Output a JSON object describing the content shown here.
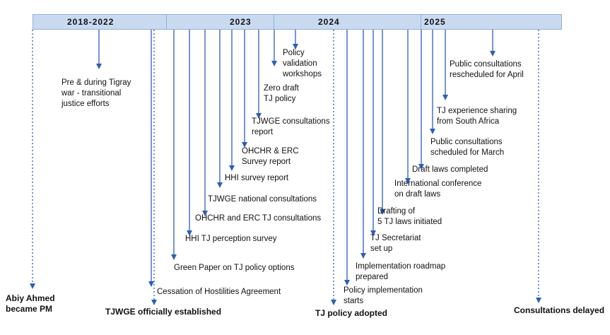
{
  "periods": [
    "2018-2022",
    "2023",
    "2024",
    "2025"
  ],
  "events": {
    "abiy": "Abiy Ahmed\nbecame PM",
    "pre_war": "Pre & during Tigray\nwar  - transitional\njustice efforts",
    "tjwge_established": "TJWGE officially established",
    "cessation": "Cessation of Hostilities Agreement",
    "green_paper": "Green Paper on TJ policy options",
    "hhi_perception": "HHI  TJ perception survey",
    "ohchr_erc_consult": "OHCHR and ERC TJ consultations",
    "tjwge_national": "TJWGE national consultations",
    "hhi_survey": "HHI survey report",
    "ohchr_erc_survey": "OHCHR & ERC\nSurvey report",
    "tjwge_consult_report": "TJWGE consultations\nreport",
    "zero_draft": "Zero draft\nTJ policy",
    "validation": "Policy\nvalidation\nworkshops",
    "policy_adopted": "TJ policy adopted",
    "implementation_starts": "Policy implementation\nstarts",
    "roadmap": "Implementation roadmap\nprepared",
    "secretariat": "TJ Secretariat\nset up",
    "drafting": "Drafting of\n5 TJ laws initiated",
    "intl_conf": "International conference\non draft laws",
    "draft_laws": "Draft laws completed",
    "public_march": "Public consultations\nscheduled for March",
    "sa_sharing": "TJ experience sharing\nfrom South Africa",
    "rescheduled": "Public consultations\nrescheduled for April",
    "delayed": "Consultations delayed"
  },
  "colors": {
    "arrow": "#2b5fb8",
    "bar": "#c9daf0",
    "bar_border": "#93b0d6"
  }
}
